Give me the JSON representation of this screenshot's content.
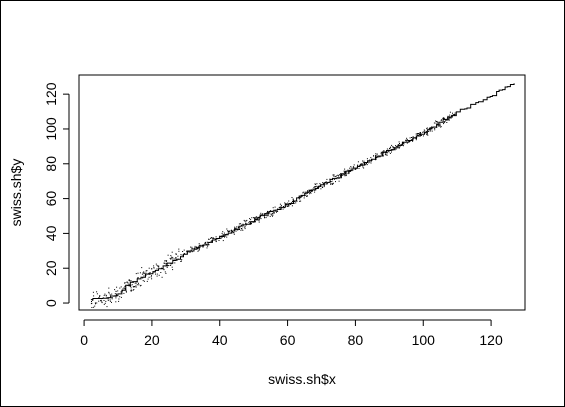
{
  "chart_data": {
    "type": "scatter",
    "title": "",
    "xlabel": "swiss.sh$x",
    "ylabel": "swiss.sh$y",
    "xlim": [
      -1.5,
      130
    ],
    "ylim": [
      -4,
      131
    ],
    "x_ticks": [
      0,
      20,
      40,
      60,
      80,
      100,
      120
    ],
    "y_ticks": [
      0,
      20,
      40,
      60,
      80,
      100,
      120
    ],
    "x_tick_labels": [
      "0",
      "20",
      "40",
      "60",
      "80",
      "100",
      "120"
    ],
    "y_tick_labels": [
      "0",
      "20",
      "40",
      "60",
      "80",
      "100",
      "120"
    ],
    "grid": false,
    "legend": "none",
    "series": [
      {
        "style": "step",
        "color": "#000000",
        "x": [
          2,
          6,
          8,
          10,
          12,
          15,
          20,
          25,
          30,
          40,
          50,
          60,
          70,
          80,
          90,
          100,
          110,
          120,
          125,
          127
        ],
        "y": [
          2,
          2.5,
          4,
          5,
          10,
          13,
          18,
          23,
          29,
          38,
          48,
          57,
          68,
          78,
          88,
          98,
          110,
          119,
          125,
          126
        ]
      },
      {
        "style": "points",
        "color": "#000000",
        "x_range": [
          2,
          110
        ],
        "trend_note": "dense points scattered around the step curve"
      }
    ]
  },
  "colors": {
    "ink": "#000000",
    "background": "#ffffff"
  }
}
